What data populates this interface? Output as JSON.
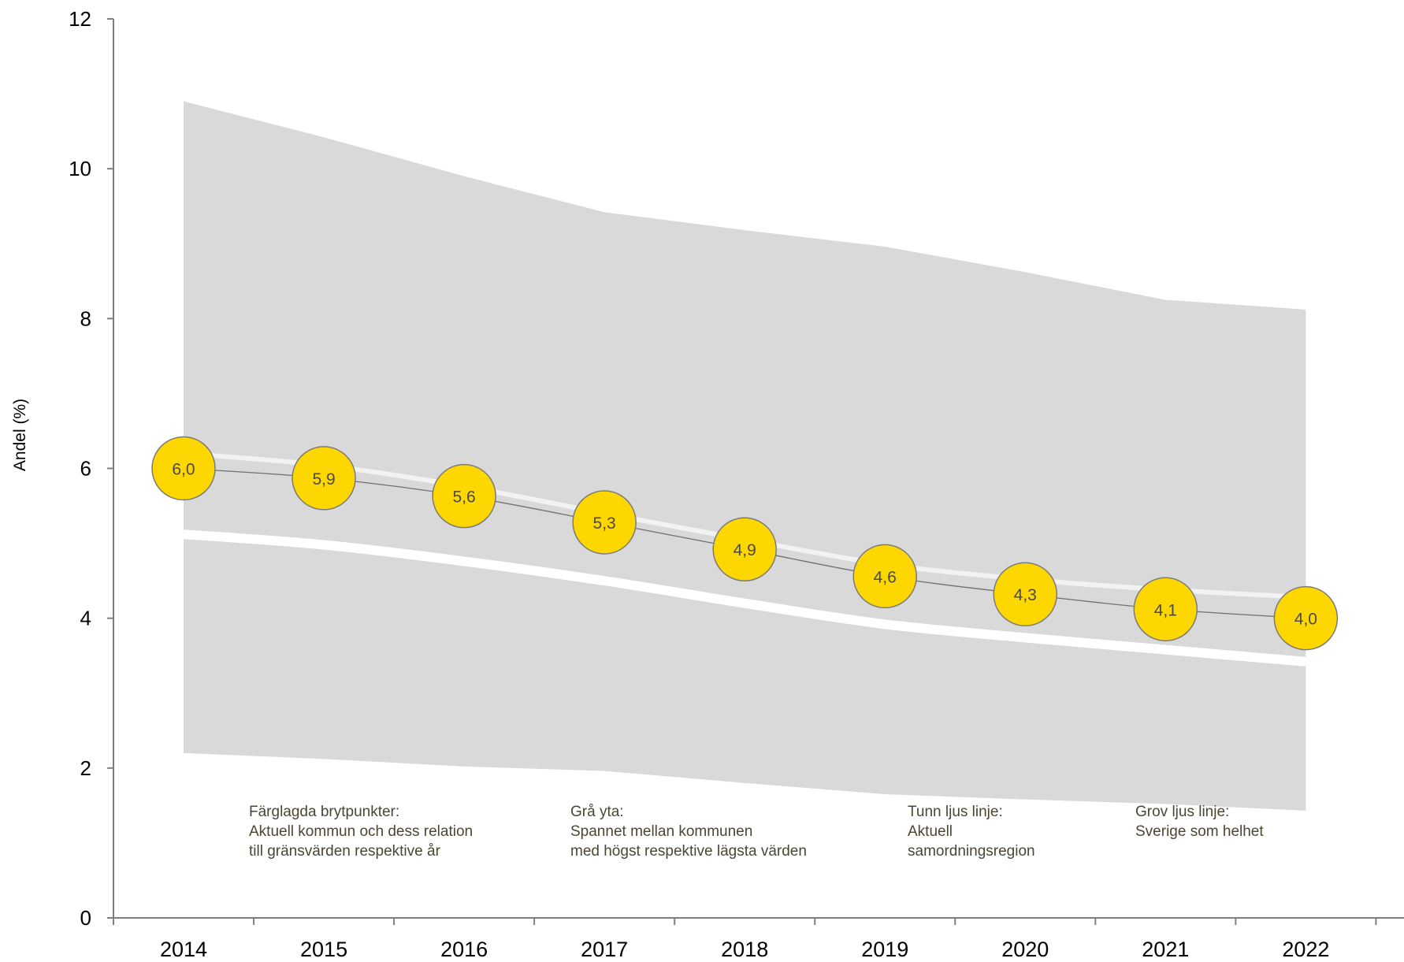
{
  "chart_data": {
    "type": "line",
    "ylabel": "Andel (%)",
    "xlabel": "",
    "ylim": [
      0,
      12
    ],
    "yticks": [
      "0",
      "2",
      "4",
      "6",
      "8",
      "10",
      "12"
    ],
    "categories": [
      "2014",
      "2015",
      "2016",
      "2017",
      "2018",
      "2019",
      "2020",
      "2021",
      "2022"
    ],
    "grid": false,
    "series": [
      {
        "name": "Aktuell kommun",
        "role": "kommun",
        "color": "#FFD700",
        "values": [
          6.0,
          5.87,
          5.63,
          5.28,
          4.92,
          4.56,
          4.32,
          4.12,
          4.0
        ],
        "labels": [
          "6,0",
          "5,9",
          "5,6",
          "5,3",
          "4,9",
          "4,6",
          "4,3",
          "4,1",
          "4,0"
        ]
      },
      {
        "name": "Aktuell samordningsregion",
        "role": "region",
        "color": "#F2F2F2",
        "values": [
          6.2,
          6.04,
          5.76,
          5.4,
          5.05,
          4.72,
          4.52,
          4.38,
          4.28
        ]
      },
      {
        "name": "Sverige som helhet",
        "role": "sverige",
        "color": "#FFFFFF",
        "values": [
          5.12,
          4.98,
          4.76,
          4.5,
          4.2,
          3.92,
          3.74,
          3.58,
          3.42
        ]
      },
      {
        "name": "Spannet mellan kommunen med högst respektive lägsta värden",
        "role": "band",
        "color": "#D9D9D9",
        "max": [
          10.9,
          10.42,
          9.9,
          9.42,
          9.18,
          8.96,
          8.62,
          8.25,
          8.12
        ],
        "min": [
          2.2,
          2.12,
          2.02,
          1.96,
          1.8,
          1.65,
          1.58,
          1.52,
          1.43
        ]
      }
    ]
  },
  "annotations": [
    {
      "text": "Färglagda brytpunkter:\nAktuell kommun och dess relation\ntill gränsvärden respektive år"
    },
    {
      "text": "Grå yta:\nSpannet mellan kommunen\nmed högst respektive lägsta värden"
    },
    {
      "text": "Tunn ljus linje:\nAktuell\nsamordningsregion"
    },
    {
      "text": "Grov ljus linje:\nSverige som helhet"
    }
  ]
}
